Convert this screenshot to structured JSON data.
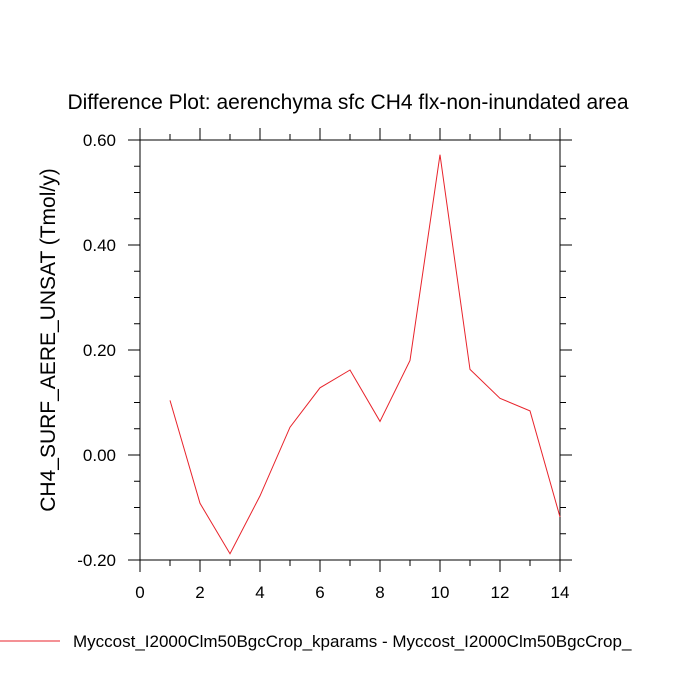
{
  "chart_data": {
    "type": "line",
    "title": "Difference Plot: aerenchyma sfc CH4 flx-non-inundated area",
    "xlabel": "",
    "ylabel": "CH4_SURF_AERE_UNSAT  (Tmol/y)",
    "xlim": [
      0,
      14
    ],
    "ylim": [
      -0.2,
      0.6
    ],
    "x_ticks": [
      "0",
      "2",
      "4",
      "6",
      "8",
      "10",
      "12",
      "14"
    ],
    "x_tick_values": [
      0,
      2,
      4,
      6,
      8,
      10,
      12,
      14
    ],
    "y_ticks": [
      "-0.20",
      "0.00",
      "0.20",
      "0.40",
      "0.60"
    ],
    "y_tick_values": [
      -0.2,
      0.0,
      0.2,
      0.4,
      0.6
    ],
    "grid": false,
    "legend_position": "bottom",
    "series": [
      {
        "name": "Myccost_I2000Clm50BgcCrop_kparams - Myccost_I2000Clm50BgcCrop_",
        "color": "#e8232b",
        "x": [
          1,
          2,
          3,
          4,
          5,
          6,
          7,
          8,
          9,
          10,
          11,
          12,
          13,
          14
        ],
        "values": [
          0.104,
          -0.092,
          -0.188,
          -0.078,
          0.053,
          0.128,
          0.162,
          0.064,
          0.18,
          0.572,
          0.163,
          0.108,
          0.084,
          -0.118
        ]
      }
    ]
  }
}
